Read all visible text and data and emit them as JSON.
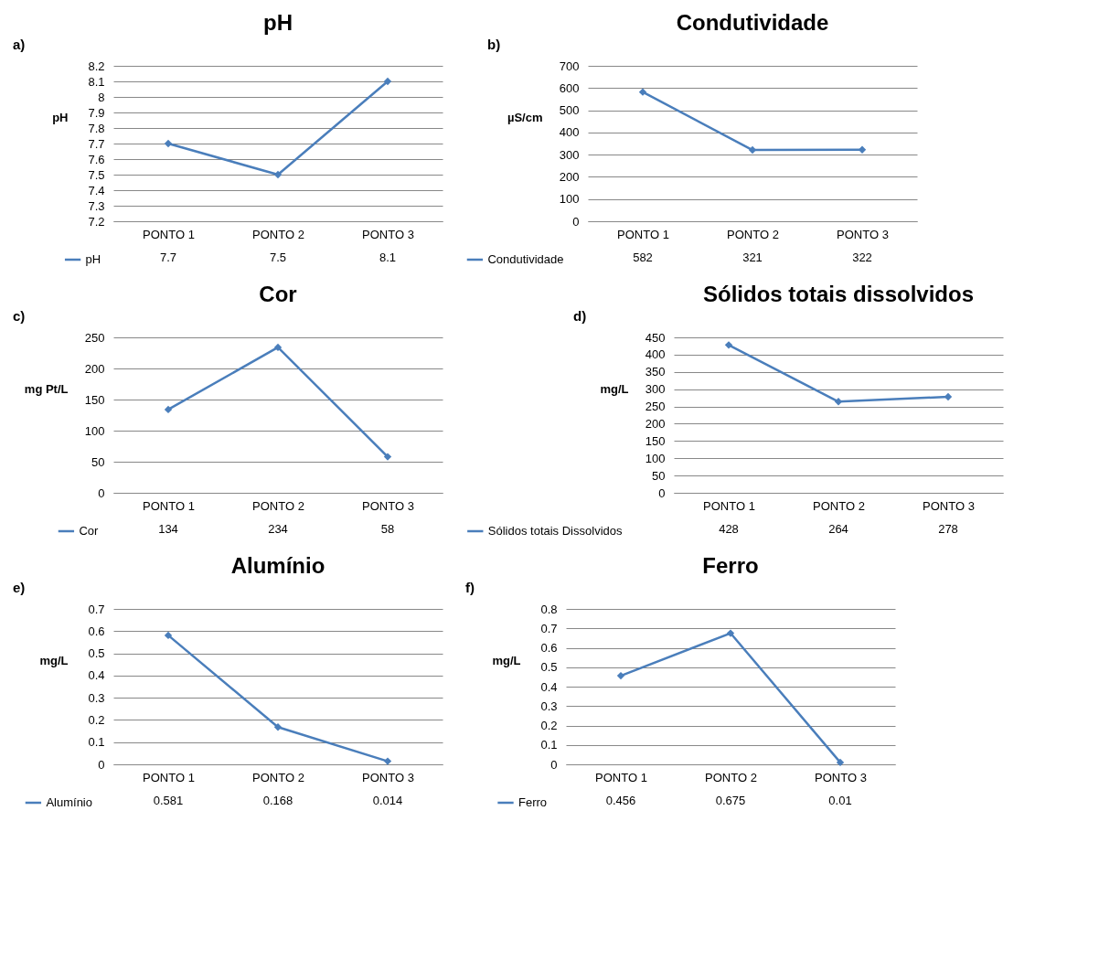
{
  "chart_data": [
    {
      "type": "line",
      "title": "pH",
      "ylabel": "pH",
      "annotations": [
        "a)"
      ],
      "categories": [
        "PONTO 1",
        "PONTO 2",
        "PONTO 3"
      ],
      "series": [
        {
          "name": "pH",
          "color": "#4a7ebb",
          "values": [
            7.7,
            7.5,
            8.1
          ]
        }
      ],
      "ylim": [
        7.2,
        8.2
      ],
      "yticks": [
        7.2,
        7.3,
        7.4,
        7.5,
        7.6,
        7.7,
        7.8,
        7.9,
        8,
        8.1,
        8.2
      ],
      "grid": "y",
      "marker": "diamond",
      "data_labels": true,
      "legend": "bottom left"
    },
    {
      "type": "line",
      "title": "Condutividade",
      "ylabel": "µS/cm",
      "annotations": [
        "b)"
      ],
      "categories": [
        "PONTO 1",
        "PONTO 2",
        "PONTO 3"
      ],
      "series": [
        {
          "name": "Condutividade",
          "color": "#4a7ebb",
          "values": [
            582,
            321,
            322
          ]
        }
      ],
      "ylim": [
        0,
        700
      ],
      "yticks": [
        0,
        100,
        200,
        300,
        400,
        500,
        600,
        700
      ],
      "grid": "y",
      "marker": "diamond",
      "data_labels": true,
      "legend": "bottom left"
    },
    {
      "type": "line",
      "title": "Cor",
      "ylabel": "mg Pt/L",
      "annotations": [
        "c)"
      ],
      "categories": [
        "PONTO 1",
        "PONTO 2",
        "PONTO 3"
      ],
      "series": [
        {
          "name": "Cor",
          "color": "#4a7ebb",
          "values": [
            134,
            234,
            58
          ]
        }
      ],
      "ylim": [
        0,
        250
      ],
      "yticks": [
        0,
        50,
        100,
        150,
        200,
        250
      ],
      "grid": "y",
      "marker": "diamond",
      "data_labels": true,
      "legend": "bottom left"
    },
    {
      "type": "line",
      "title": "Sólidos totais dissolvidos",
      "ylabel": "mg/L",
      "annotations": [
        "d)"
      ],
      "categories": [
        "PONTO 1",
        "PONTO 2",
        "PONTO 3"
      ],
      "series": [
        {
          "name": "Sólidos totais Dissolvidos",
          "color": "#4a7ebb",
          "values": [
            428,
            264,
            278
          ]
        }
      ],
      "ylim": [
        0,
        450
      ],
      "yticks": [
        0,
        50,
        100,
        150,
        200,
        250,
        300,
        350,
        400,
        450
      ],
      "grid": "y",
      "marker": "diamond",
      "data_labels": true,
      "legend": "bottom left"
    },
    {
      "type": "line",
      "title": "Alumínio",
      "ylabel": "mg/L",
      "annotations": [
        "e)"
      ],
      "categories": [
        "PONTO 1",
        "PONTO 2",
        "PONTO 3"
      ],
      "series": [
        {
          "name": "Alumínio",
          "color": "#4a7ebb",
          "values": [
            0.581,
            0.168,
            0.014
          ]
        }
      ],
      "ylim": [
        0,
        0.7
      ],
      "yticks": [
        0,
        0.1,
        0.2,
        0.3,
        0.4,
        0.5,
        0.6,
        0.7
      ],
      "grid": "y",
      "marker": "diamond",
      "data_labels": true,
      "legend": "bottom left"
    },
    {
      "type": "line",
      "title": "Ferro",
      "ylabel": "mg/L",
      "annotations": [
        "f)"
      ],
      "categories": [
        "PONTO 1",
        "PONTO 2",
        "PONTO 3"
      ],
      "series": [
        {
          "name": "Ferro",
          "color": "#4a7ebb",
          "values": [
            0.456,
            0.675,
            0.01
          ]
        }
      ],
      "ylim": [
        0,
        0.8
      ],
      "yticks": [
        0,
        0.1,
        0.2,
        0.3,
        0.4,
        0.5,
        0.6,
        0.7,
        0.8
      ],
      "grid": "y",
      "marker": "diamond",
      "data_labels": true,
      "legend": "bottom left"
    }
  ]
}
